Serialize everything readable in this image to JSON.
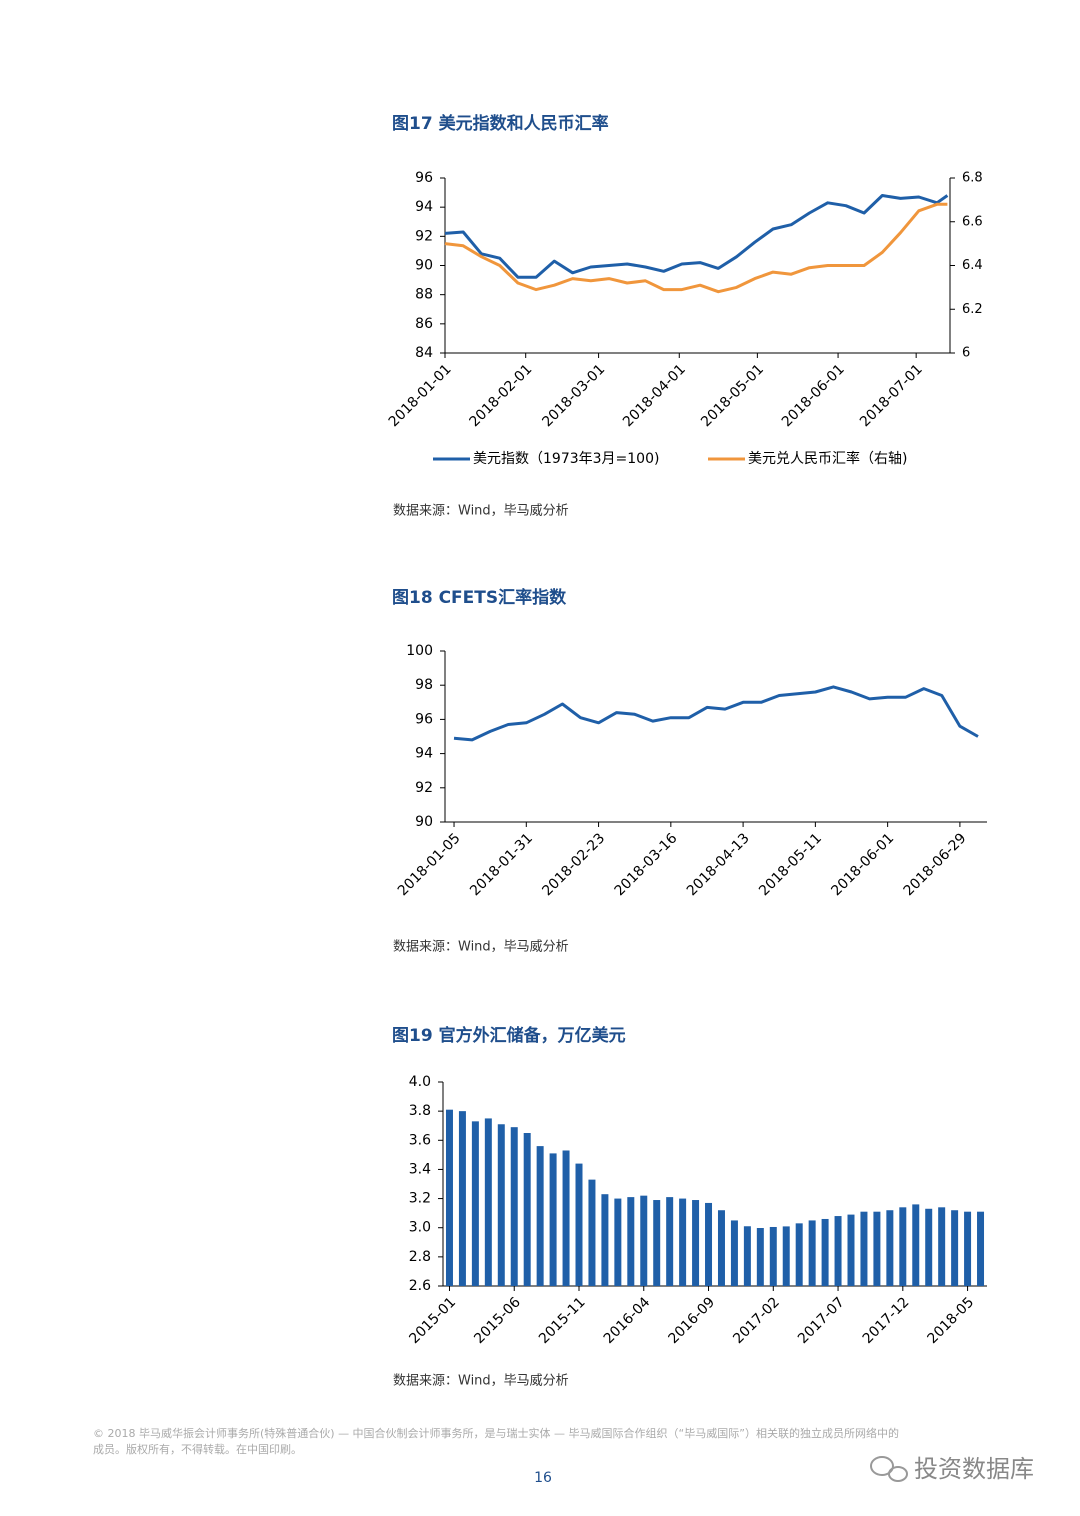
{
  "chart_data": [
    {
      "type": "line",
      "title": "图17 美元指数和人民币汇率",
      "source": "数据来源：Wind，毕马威分析",
      "x": [
        "2018-01-01",
        "2018-01-08",
        "2018-01-15",
        "2018-01-22",
        "2018-01-29",
        "2018-02-05",
        "2018-02-12",
        "2018-02-19",
        "2018-02-26",
        "2018-03-05",
        "2018-03-12",
        "2018-03-19",
        "2018-03-26",
        "2018-04-02",
        "2018-04-09",
        "2018-04-16",
        "2018-04-23",
        "2018-04-30",
        "2018-05-07",
        "2018-05-14",
        "2018-05-21",
        "2018-05-28",
        "2018-06-04",
        "2018-06-11",
        "2018-06-18",
        "2018-06-25",
        "2018-07-02",
        "2018-07-09",
        "2018-07-13"
      ],
      "xlim": [
        "2018-01-01",
        "2018-07-14"
      ],
      "xticks": [
        "2018-01-01",
        "2018-02-01",
        "2018-03-01",
        "2018-04-01",
        "2018-05-01",
        "2018-06-01",
        "2018-07-01"
      ],
      "ylim": [
        84,
        96
      ],
      "yticks": [
        84,
        86,
        88,
        90,
        92,
        94,
        96
      ],
      "y2lim": [
        6,
        6.8
      ],
      "y2ticks": [
        6,
        6.2,
        6.4,
        6.6,
        6.8
      ],
      "series": [
        {
          "name": "美元指数（1973年3月=100)",
          "color": "#1f5fa8",
          "values": [
            92.2,
            92.3,
            90.8,
            90.5,
            89.2,
            89.2,
            90.3,
            89.5,
            89.9,
            90.0,
            90.1,
            89.9,
            89.6,
            90.1,
            90.2,
            89.8,
            90.6,
            91.6,
            92.5,
            92.8,
            93.6,
            94.3,
            94.1,
            93.6,
            94.8,
            94.6,
            94.7,
            94.3,
            94.8
          ]
        },
        {
          "name": "美元兑人民币汇率（右轴)",
          "color": "#f0963c",
          "axis": "y2",
          "values": [
            6.5,
            6.49,
            6.44,
            6.4,
            6.32,
            6.29,
            6.31,
            6.34,
            6.33,
            6.34,
            6.32,
            6.33,
            6.29,
            6.29,
            6.31,
            6.28,
            6.3,
            6.34,
            6.37,
            6.36,
            6.39,
            6.4,
            6.4,
            6.4,
            6.46,
            6.55,
            6.65,
            6.68,
            6.68
          ]
        }
      ]
    },
    {
      "type": "line",
      "title": "图18 CFETS汇率指数",
      "source": "数据来源：Wind，毕马威分析",
      "categories": [
        "2018-01-05",
        null,
        null,
        null,
        "2018-01-31",
        null,
        null,
        null,
        "2018-02-23",
        null,
        null,
        null,
        "2018-03-16",
        null,
        null,
        null,
        "2018-04-13",
        null,
        null,
        null,
        "2018-05-11",
        null,
        null,
        null,
        "2018-06-01",
        null,
        null,
        null,
        "2018-06-29",
        null
      ],
      "color": "#1f5fa8",
      "values": [
        94.9,
        94.8,
        95.3,
        95.7,
        95.8,
        96.3,
        96.9,
        96.1,
        95.8,
        96.4,
        96.3,
        95.9,
        96.1,
        96.1,
        96.7,
        96.6,
        97.0,
        97.0,
        97.4,
        97.5,
        97.6,
        97.9,
        97.6,
        97.2,
        97.3,
        97.3,
        97.8,
        97.4,
        95.6,
        95.0
      ],
      "ylim": [
        90,
        100
      ],
      "yticks": [
        90,
        92,
        94,
        96,
        98,
        100
      ]
    },
    {
      "type": "bar",
      "title": "图19 官方外汇储备，万亿美元",
      "source": "数据来源：Wind，毕马威分析",
      "categories": [
        "2015-01",
        null,
        null,
        null,
        null,
        "2015-06",
        null,
        null,
        null,
        null,
        "2015-11",
        null,
        null,
        null,
        null,
        "2016-04",
        null,
        null,
        null,
        null,
        "2016-09",
        null,
        null,
        null,
        null,
        "2017-02",
        null,
        null,
        null,
        null,
        "2017-07",
        null,
        null,
        null,
        null,
        "2017-12",
        null,
        null,
        null,
        null,
        "2018-05",
        null
      ],
      "color": "#1f5fa8",
      "values": [
        3.81,
        3.8,
        3.73,
        3.75,
        3.71,
        3.69,
        3.65,
        3.56,
        3.51,
        3.53,
        3.44,
        3.33,
        3.23,
        3.2,
        3.21,
        3.22,
        3.19,
        3.21,
        3.2,
        3.19,
        3.17,
        3.12,
        3.05,
        3.01,
        2.998,
        3.005,
        3.009,
        3.03,
        3.05,
        3.06,
        3.08,
        3.09,
        3.11,
        3.11,
        3.12,
        3.14,
        3.16,
        3.13,
        3.14,
        3.12,
        3.11,
        3.11
      ],
      "ylim": [
        2.6,
        4.0
      ],
      "yticks": [
        2.6,
        2.8,
        {
          "value": 3,
          "label": "3.0"
        },
        3.2,
        3.4,
        3.6,
        3.8,
        {
          "value": 4,
          "label": "4.0"
        }
      ]
    }
  ],
  "footer": {
    "copyright": [
      "© 2018 毕马威华振会计师事务所(特殊普通合伙) — 中国合伙制会计师事务所，是与瑞士实体 — 毕马威国际合作组织（“毕马威国际”）相关联的独立成员所网络中的",
      "成员。版权所有，不得转载。在中国印刷。"
    ],
    "page_number": "16",
    "watermark": "投资数据库"
  }
}
